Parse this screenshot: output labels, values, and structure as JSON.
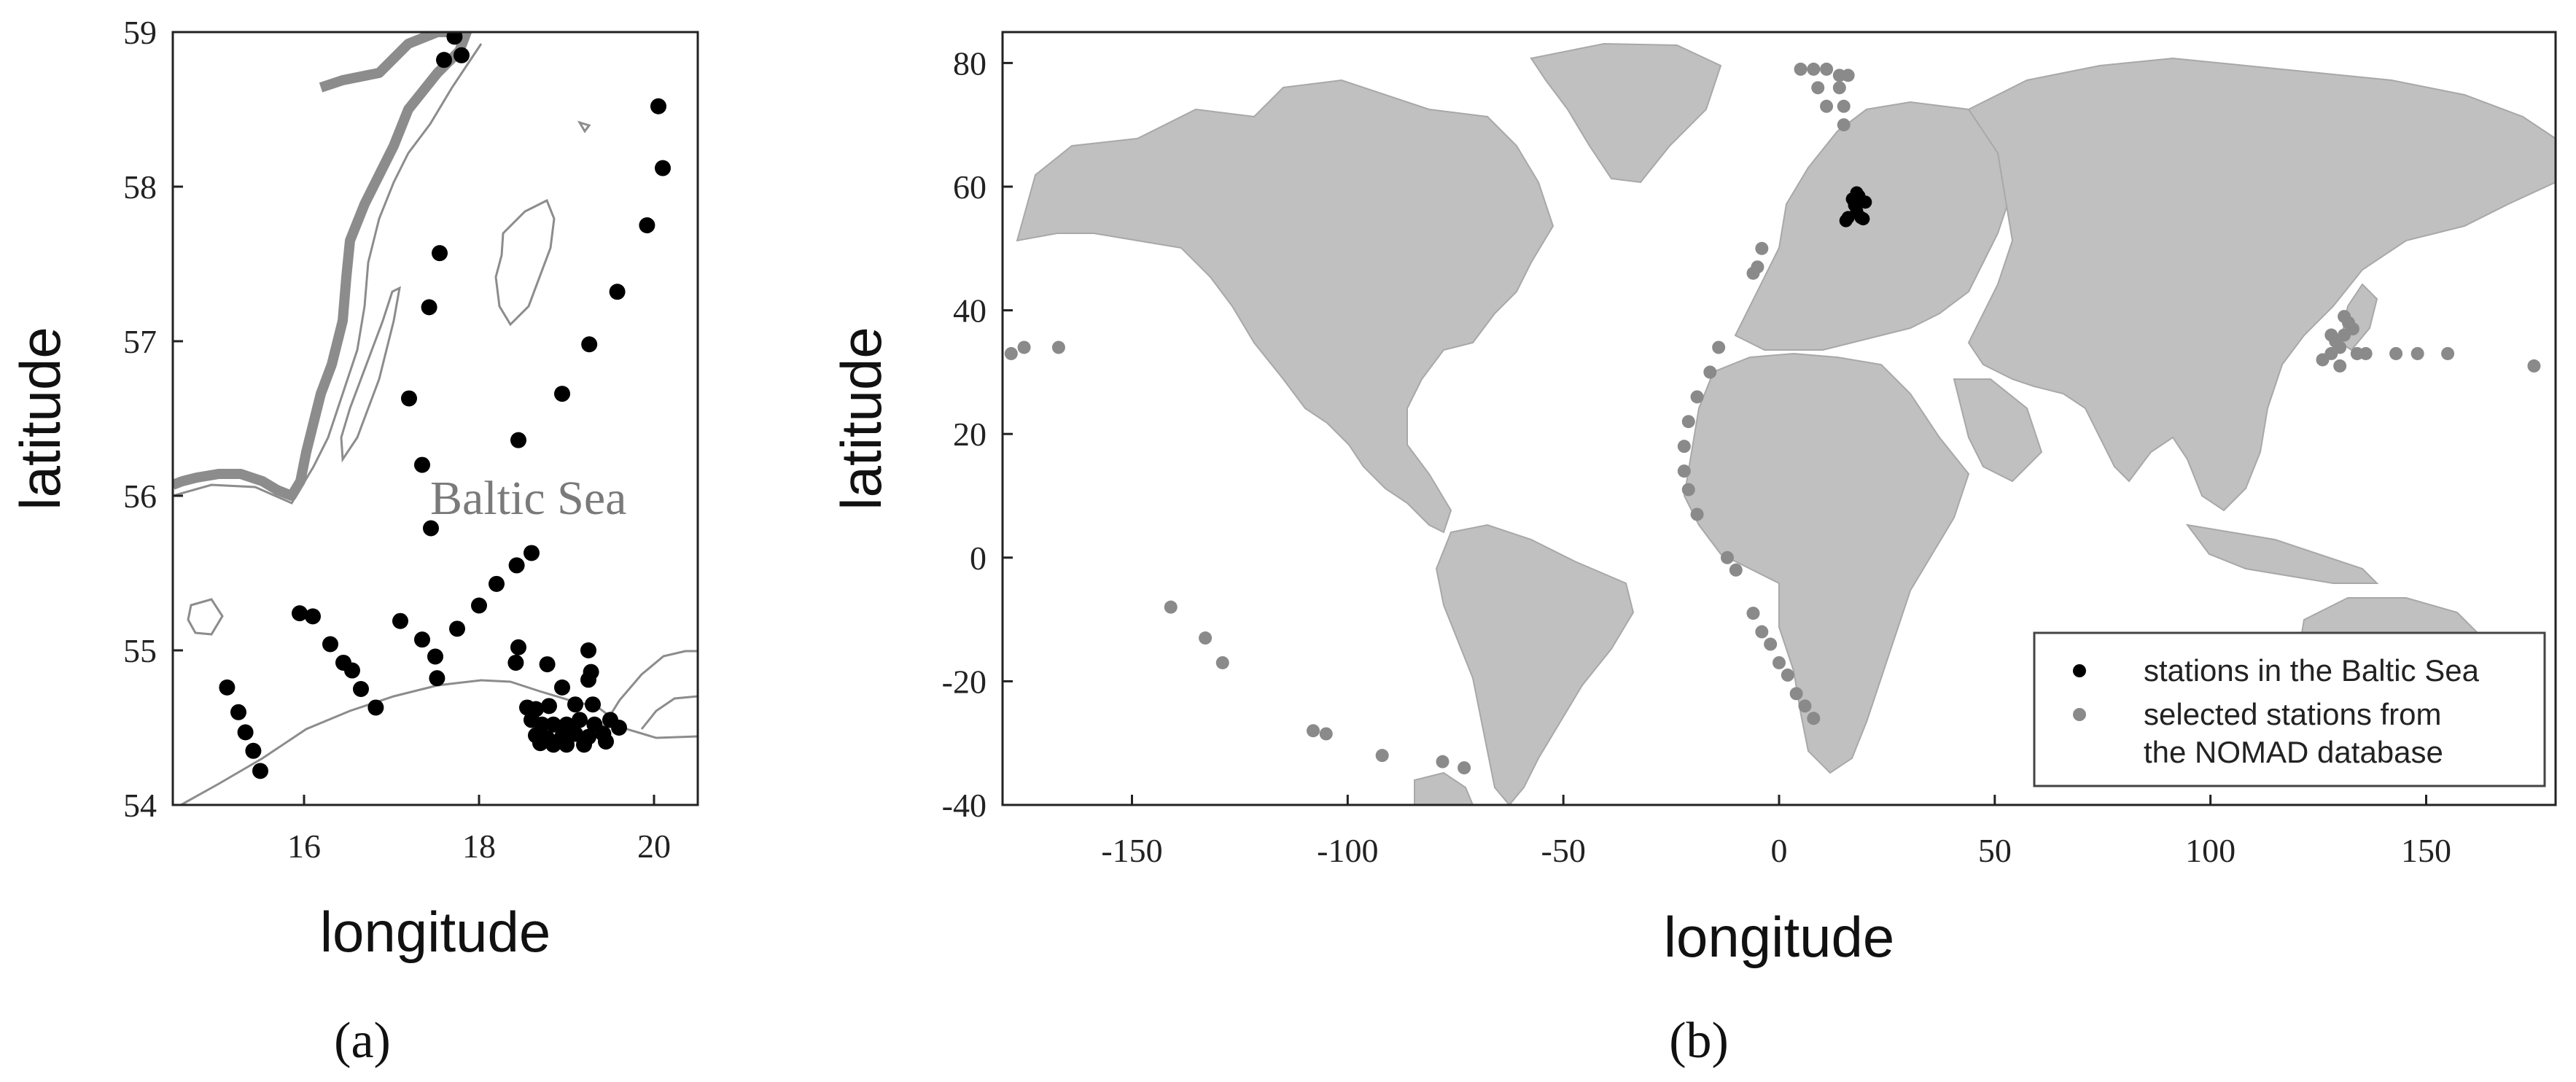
{
  "panel_a": {
    "label": "(a)",
    "xlabel": "longitude",
    "ylabel": "latitude",
    "xticks": [
      "16",
      "18",
      "20"
    ],
    "yticks": [
      "54",
      "55",
      "56",
      "57",
      "58",
      "59"
    ],
    "place_label": "Baltic Sea"
  },
  "panel_b": {
    "label": "(b)",
    "xlabel": "longitude",
    "ylabel": "latitude",
    "xticks": [
      "-150",
      "-100",
      "-50",
      "0",
      "50",
      "100",
      "150"
    ],
    "yticks": [
      "80",
      "60",
      "40",
      "20",
      "0",
      "-20",
      "-40"
    ],
    "legend": [
      {
        "label": "stations in the Baltic Sea",
        "color": "#000000"
      },
      {
        "label": "selected stations from",
        "color": "#8a8a8a"
      },
      {
        "label": "the NOMAD database",
        "color": null
      }
    ]
  },
  "colors": {
    "station_black": "#000000",
    "station_grey": "#8a8a8a",
    "land": "#b5b5b5",
    "coast": "#8c8c8c"
  },
  "chart_data": [
    {
      "type": "scatter",
      "title": "",
      "xlabel": "longitude",
      "ylabel": "latitude",
      "xlim": [
        14.5,
        20.5
      ],
      "ylim": [
        54,
        59
      ],
      "series": [
        {
          "color": "#000000",
          "points": [
            [
              17.6,
              58.82
            ],
            [
              17.8,
              58.85
            ],
            [
              17.72,
              58.97
            ],
            [
              20.05,
              58.52
            ],
            [
              20.1,
              58.12
            ],
            [
              19.92,
              57.75
            ],
            [
              19.58,
              57.32
            ],
            [
              19.26,
              56.98
            ],
            [
              18.95,
              56.66
            ],
            [
              18.45,
              56.36
            ],
            [
              17.55,
              57.57
            ],
            [
              17.43,
              57.22
            ],
            [
              17.2,
              56.63
            ],
            [
              17.35,
              56.2
            ],
            [
              17.45,
              55.79
            ],
            [
              18.6,
              55.63
            ],
            [
              18.43,
              55.55
            ],
            [
              18.2,
              55.43
            ],
            [
              18.0,
              55.29
            ],
            [
              17.75,
              55.14
            ],
            [
              17.1,
              55.19
            ],
            [
              17.35,
              55.07
            ],
            [
              17.5,
              54.96
            ],
            [
              17.52,
              54.82
            ],
            [
              15.95,
              55.24
            ],
            [
              16.1,
              55.22
            ],
            [
              16.3,
              55.04
            ],
            [
              16.45,
              54.92
            ],
            [
              16.55,
              54.87
            ],
            [
              16.65,
              54.75
            ],
            [
              16.82,
              54.63
            ],
            [
              15.12,
              54.76
            ],
            [
              15.25,
              54.6
            ],
            [
              15.33,
              54.47
            ],
            [
              15.42,
              54.35
            ],
            [
              15.5,
              54.22
            ],
            [
              18.45,
              55.02
            ],
            [
              18.42,
              54.92
            ],
            [
              18.78,
              54.91
            ],
            [
              19.25,
              55.0
            ],
            [
              19.28,
              54.86
            ],
            [
              19.25,
              54.81
            ],
            [
              18.95,
              54.76
            ],
            [
              18.55,
              54.63
            ],
            [
              18.65,
              54.62
            ],
            [
              18.8,
              54.64
            ],
            [
              19.1,
              54.65
            ],
            [
              19.3,
              54.65
            ],
            [
              18.6,
              54.55
            ],
            [
              18.72,
              54.52
            ],
            [
              18.85,
              54.52
            ],
            [
              19.0,
              54.52
            ],
            [
              19.15,
              54.55
            ],
            [
              19.32,
              54.52
            ],
            [
              19.5,
              54.55
            ],
            [
              19.6,
              54.5
            ],
            [
              18.65,
              54.45
            ],
            [
              18.78,
              54.43
            ],
            [
              18.95,
              54.44
            ],
            [
              19.1,
              54.46
            ],
            [
              19.25,
              54.44
            ],
            [
              19.42,
              54.46
            ],
            [
              18.7,
              54.4
            ],
            [
              18.85,
              54.39
            ],
            [
              19.0,
              54.39
            ],
            [
              19.2,
              54.39
            ],
            [
              19.45,
              54.41
            ]
          ]
        }
      ]
    },
    {
      "type": "scatter",
      "title": "",
      "xlabel": "longitude",
      "ylabel": "latitude",
      "xlim": [
        -180,
        180
      ],
      "ylim": [
        -40,
        85
      ],
      "legend_position": "bottom-right",
      "series": [
        {
          "name": "stations in the Baltic Sea",
          "color": "#000000",
          "points": [
            [
              17,
              58
            ],
            [
              18,
              56
            ],
            [
              19,
              55
            ],
            [
              16,
              55
            ],
            [
              18.5,
              58.5
            ],
            [
              17.5,
              57
            ],
            [
              19.5,
              54.8
            ],
            [
              15.5,
              54.5
            ],
            [
              20,
              57.5
            ],
            [
              18,
              59
            ]
          ]
        },
        {
          "name": "selected stations from the NOMAD database",
          "color": "#8a8a8a",
          "points": [
            [
              5,
              79
            ],
            [
              8,
              79
            ],
            [
              11,
              79
            ],
            [
              14,
              78
            ],
            [
              16,
              78
            ],
            [
              14,
              76
            ],
            [
              15,
              73
            ],
            [
              15,
              70
            ],
            [
              9,
              76
            ],
            [
              11,
              73
            ],
            [
              -4,
              50
            ],
            [
              -5,
              47
            ],
            [
              -6,
              46
            ],
            [
              -14,
              34
            ],
            [
              -16,
              30
            ],
            [
              -19,
              26
            ],
            [
              -21,
              22
            ],
            [
              -22,
              18
            ],
            [
              -22,
              14
            ],
            [
              -21,
              11
            ],
            [
              -19,
              7
            ],
            [
              -12,
              0
            ],
            [
              -10,
              -2
            ],
            [
              -6,
              -9
            ],
            [
              -4,
              -12
            ],
            [
              -2,
              -14
            ],
            [
              0,
              -17
            ],
            [
              2,
              -19
            ],
            [
              4,
              -22
            ],
            [
              6,
              -24
            ],
            [
              8,
              -26
            ],
            [
              -178,
              33
            ],
            [
              -175,
              34
            ],
            [
              -167,
              34
            ],
            [
              -141,
              -8
            ],
            [
              -133,
              -13
            ],
            [
              -129,
              -17
            ],
            [
              -108,
              -28
            ],
            [
              -105,
              -28.5
            ],
            [
              -92,
              -32
            ],
            [
              -78,
              -33
            ],
            [
              -73,
              -34
            ],
            [
              126,
              32
            ],
            [
              128,
              33
            ],
            [
              129,
              35
            ],
            [
              130,
              34
            ],
            [
              131,
              36
            ],
            [
              132,
              38
            ],
            [
              133,
              37
            ],
            [
              130,
              31
            ],
            [
              134,
              33
            ],
            [
              136,
              33
            ],
            [
              128,
              36
            ],
            [
              131,
              39
            ],
            [
              143,
              33
            ],
            [
              148,
              33
            ],
            [
              155,
              33
            ],
            [
              175,
              31
            ]
          ]
        }
      ]
    }
  ]
}
